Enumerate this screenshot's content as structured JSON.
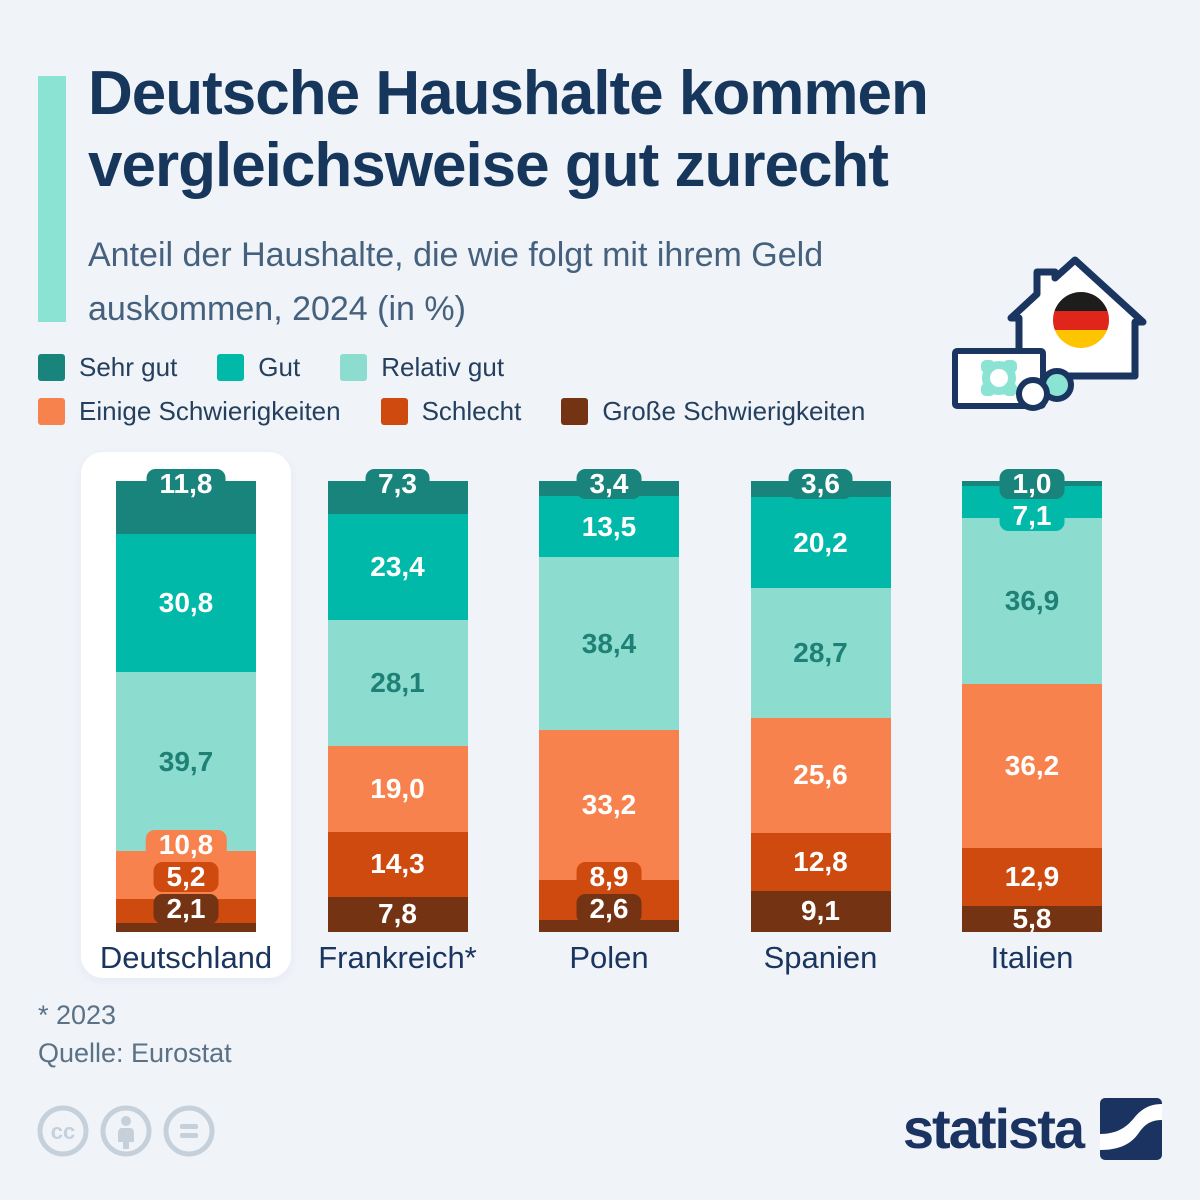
{
  "header": {
    "title_line1": "Deutsche Haushalte kommen",
    "title_line2": "vergleichsweise gut zurecht",
    "subtitle_line1": "Anteil der Haushalte, die wie folgt mit ihrem Geld",
    "subtitle_line2": "auskommen, 2024 (in %)"
  },
  "legend_rows": [
    [
      {
        "label": "Sehr gut",
        "key": "sehr_gut"
      },
      {
        "label": "Gut",
        "key": "gut"
      },
      {
        "label": "Relativ gut",
        "key": "relativ_gut"
      }
    ],
    [
      {
        "label": "Einige Schwierigkeiten",
        "key": "einige"
      },
      {
        "label": "Schlecht",
        "key": "schlecht"
      },
      {
        "label": "Große Schwierigkeiten",
        "key": "grosse"
      }
    ]
  ],
  "colors": {
    "background": "#F0F4F9",
    "accent_bar": "#8BE3D3",
    "title": "#16365C",
    "subtitle": "#46617D",
    "legend_text": "#25405E",
    "country_label": "#1A3560",
    "footer_text": "#5A7186",
    "cc_icon": "#C6D0DA",
    "logo": "#1A3360",
    "label_on_light_segment": "#1F8076",
    "categories": {
      "sehr_gut": "#18847B",
      "gut": "#00B9A9",
      "relativ_gut": "#8CDCCF",
      "einige": "#F8824E",
      "schlecht": "#CE4A0E",
      "grosse": "#743312"
    },
    "flag": {
      "black": "#1D1D1B",
      "red": "#E0251B",
      "gold": "#FFC400"
    }
  },
  "chart_data": {
    "type": "bar",
    "stacked": true,
    "unit": "% of households",
    "title": "Anteil der Haushalte, die wie folgt mit ihrem Geld auskommen, 2024 (in %)",
    "categories": [
      "Deutschland",
      "Frankreich*",
      "Polen",
      "Spanien",
      "Italien"
    ],
    "highlighted_category": "Deutschland",
    "legend_position": "top",
    "grid": false,
    "ylim": [
      0,
      100
    ],
    "series": [
      {
        "name": "Sehr gut",
        "key": "sehr_gut",
        "values": [
          11.8,
          7.3,
          3.4,
          3.6,
          1.0
        ],
        "labels": [
          "11,8",
          "7,3",
          "3,4",
          "3,6",
          "1,0"
        ]
      },
      {
        "name": "Gut",
        "key": "gut",
        "values": [
          30.8,
          23.4,
          13.5,
          20.2,
          7.1
        ],
        "labels": [
          "30,8",
          "23,4",
          "13,5",
          "20,2",
          "7,1"
        ]
      },
      {
        "name": "Relativ gut",
        "key": "relativ_gut",
        "values": [
          39.7,
          28.1,
          38.4,
          28.7,
          36.9
        ],
        "labels": [
          "39,7",
          "28,1",
          "38,4",
          "28,7",
          "36,9"
        ]
      },
      {
        "name": "Einige Schwierigkeiten",
        "key": "einige",
        "values": [
          10.8,
          19.0,
          33.2,
          25.6,
          36.2
        ],
        "labels": [
          "10,8",
          "19,0",
          "33,2",
          "25,6",
          "36,2"
        ]
      },
      {
        "name": "Schlecht",
        "key": "schlecht",
        "values": [
          5.2,
          14.3,
          8.9,
          12.8,
          12.9
        ],
        "labels": [
          "5,2",
          "14,3",
          "8,9",
          "12,8",
          "12,9"
        ]
      },
      {
        "name": "Große Schwierigkeiten",
        "key": "grosse",
        "values": [
          2.1,
          7.8,
          2.6,
          9.1,
          5.8
        ],
        "labels": [
          "2,1",
          "7,8",
          "2,6",
          "9,1",
          "5,8"
        ]
      }
    ],
    "label_display": [
      [
        "badge",
        "plain",
        "plain",
        "badge",
        "badge",
        "badge"
      ],
      [
        "badge",
        "plain",
        "plain",
        "plain",
        "plain",
        "plain"
      ],
      [
        "badge",
        "plain",
        "plain",
        "plain",
        "badge",
        "badge"
      ],
      [
        "badge",
        "plain",
        "plain",
        "plain",
        "plain",
        "plain"
      ],
      [
        "badge",
        "badge",
        "plain",
        "plain",
        "plain",
        "plain"
      ]
    ]
  },
  "footer": {
    "footnote": "* 2023",
    "source": "Quelle: Eurostat"
  },
  "branding": {
    "logo_text": "statista"
  },
  "icons": {
    "header_icon": "house-with-german-flag-and-money-icon",
    "license_icons": [
      "cc-icon",
      "attribution-person-icon",
      "equals-icon"
    ],
    "logo_mark": "statista-swoosh-icon"
  }
}
